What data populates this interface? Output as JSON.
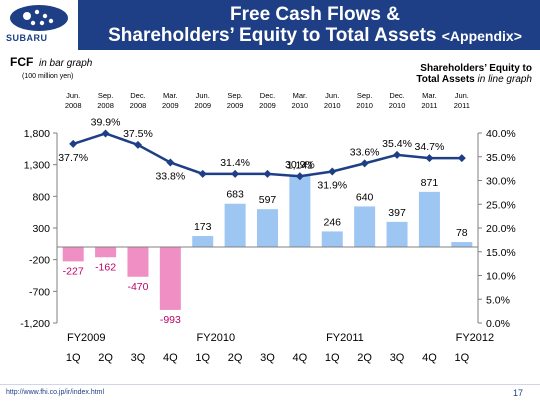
{
  "header": {
    "logo_text": "SUBARU",
    "title_line1": "Free Cash Flows &",
    "title_line2": "Shareholders’ Equity to Total Assets",
    "title_suffix": "<Appendix>"
  },
  "footer": {
    "url": "http://www.fhi.co.jp/ir/index.html",
    "page": "17"
  },
  "colors": {
    "header_bg": "#1e3f86",
    "bar_positive": "#9dc6f2",
    "bar_negative": "#ef8fc4",
    "line": "#1e3f86"
  },
  "chart_data": {
    "type": "bar+line",
    "left_title": "FCF",
    "left_title_suffix": "in bar graph",
    "left_unit": "(100 million yen)",
    "right_title": "Shareholders’ Equity to",
    "right_title2": "Total Assets",
    "right_title_suffix": "in line graph",
    "top_labels": [
      [
        "Jun.",
        "2008"
      ],
      [
        "Sep.",
        "2008"
      ],
      [
        "Dec.",
        "2008"
      ],
      [
        "Mar.",
        "2009"
      ],
      [
        "Jun.",
        "2009"
      ],
      [
        "Sep.",
        "2009"
      ],
      [
        "Dec.",
        "2009"
      ],
      [
        "Mar.",
        "2010"
      ],
      [
        "Jun.",
        "2010"
      ],
      [
        "Sep.",
        "2010"
      ],
      [
        "Dec.",
        "2010"
      ],
      [
        "Mar.",
        "2011"
      ],
      [
        "Jun.",
        "2011"
      ]
    ],
    "quarter_labels": [
      "1Q",
      "2Q",
      "3Q",
      "4Q",
      "1Q",
      "2Q",
      "3Q",
      "4Q",
      "1Q",
      "2Q",
      "3Q",
      "4Q",
      "1Q"
    ],
    "fiscal_year_labels": [
      {
        "label": "FY2009",
        "start_index": 0
      },
      {
        "label": "FY2010",
        "start_index": 4
      },
      {
        "label": "FY2011",
        "start_index": 8
      },
      {
        "label": "FY2012",
        "start_index": 12
      }
    ],
    "bar_series": {
      "values": [
        -227,
        -162,
        -470,
        -993,
        173,
        683,
        597,
        1141,
        246,
        640,
        397,
        871,
        78
      ],
      "labels": [
        "-227",
        "-162",
        "-470",
        "-993",
        "173",
        "683",
        "597",
        "1,141",
        "246",
        "640",
        "397",
        "871",
        "78"
      ]
    },
    "line_series": {
      "values": [
        37.7,
        39.9,
        37.5,
        33.8,
        31.4,
        31.4,
        31.4,
        30.9,
        31.9,
        33.6,
        35.4,
        34.7,
        34.7
      ],
      "labels": [
        "37.7%",
        "39.9%",
        "37.5%",
        "33.8%",
        "",
        "31.4%",
        "",
        "30.9%",
        "31.9%",
        "33.6%",
        "35.4%",
        "34.7%",
        ""
      ]
    },
    "left_axis": {
      "min": -1200,
      "max": 1800,
      "ticks": [
        1800,
        1300,
        800,
        300,
        -200,
        -700,
        -1200
      ],
      "tick_labels": [
        "1,800",
        "1,300",
        "800",
        "300",
        "-200",
        "-700",
        "-1,200"
      ]
    },
    "right_axis": {
      "min": 0,
      "max": 40,
      "ticks": [
        40,
        35,
        30,
        25,
        20,
        15,
        10,
        5,
        0
      ],
      "tick_labels": [
        "40.0%",
        "35.0%",
        "30.0%",
        "25.0%",
        "20.0%",
        "15.0%",
        "10.0%",
        "5.0%",
        "0.0%"
      ]
    }
  }
}
